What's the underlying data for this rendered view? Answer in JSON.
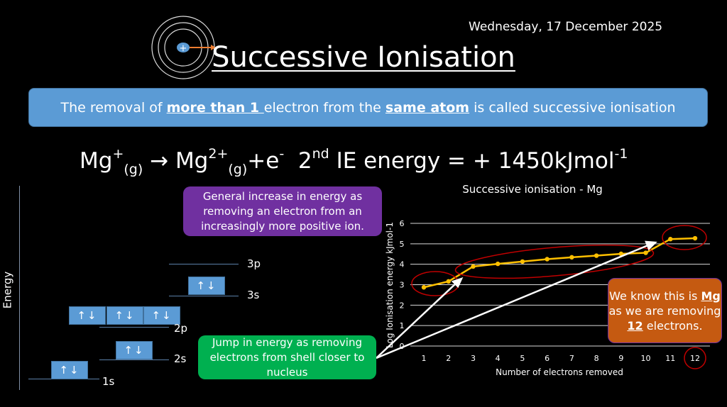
{
  "date": "Wednesday, 17 December 2025",
  "title": "Successive Ionisation",
  "icons": {
    "atom": "atom-electron-removal-icon",
    "nucleus_symbol": "+"
  },
  "banner": {
    "pre": "The removal of ",
    "bold1": "more than 1 ",
    "mid": "electron from the ",
    "bold2": "same atom",
    "post": " is called successive ionisation"
  },
  "equation": {
    "p1": "Mg",
    "p1_sup": "+",
    "p1_sub": "(g)",
    "arrow": " → ",
    "p2": "Mg",
    "p2_sup": "2+",
    "p2_sub": "(g)",
    "p3": "+e",
    "p3_sup": "-",
    "p4": "  2",
    "p4_sup": "nd",
    "p5": " IE energy = + 1450kJmol",
    "p5_sup": "-1"
  },
  "purple_note": "General increase in energy as removing an electron from an increasingly more positive ion.",
  "green_note": "Jump in energy as removing electrons from shell closer to nucleus",
  "orange_note": {
    "l1": "We know this is ",
    "b1": "Mg",
    "l2": " as we are removing ",
    "b2": "12",
    "l3": " electrons."
  },
  "energy_diagram": {
    "axis_label": "Energy",
    "orbital_box_text": "↑↓",
    "levels": [
      "1s",
      "2s",
      "2p",
      "3s",
      "3p"
    ]
  },
  "colors": {
    "line": "#ffc000",
    "highlight": "#c00000",
    "banner": "#5b9bd5",
    "purple": "#7030a0",
    "green": "#00b050",
    "orange": "#c55a11"
  },
  "chart_data": {
    "type": "line",
    "title": "Successive ionisation - Mg",
    "xlabel": "Number of electrons removed",
    "ylabel": "Log Ionisation energy kJmol-1",
    "categories": [
      "1",
      "2",
      "3",
      "4",
      "5",
      "6",
      "7",
      "8",
      "9",
      "10",
      "11",
      "12"
    ],
    "values": [
      2.87,
      3.16,
      3.89,
      4.02,
      4.13,
      4.25,
      4.34,
      4.42,
      4.51,
      4.56,
      5.23,
      5.27
    ],
    "ylim": [
      0,
      6
    ],
    "yticks": [
      "0",
      "1",
      "2",
      "3",
      "4",
      "5",
      "6"
    ],
    "grid": true,
    "legend": "none"
  }
}
